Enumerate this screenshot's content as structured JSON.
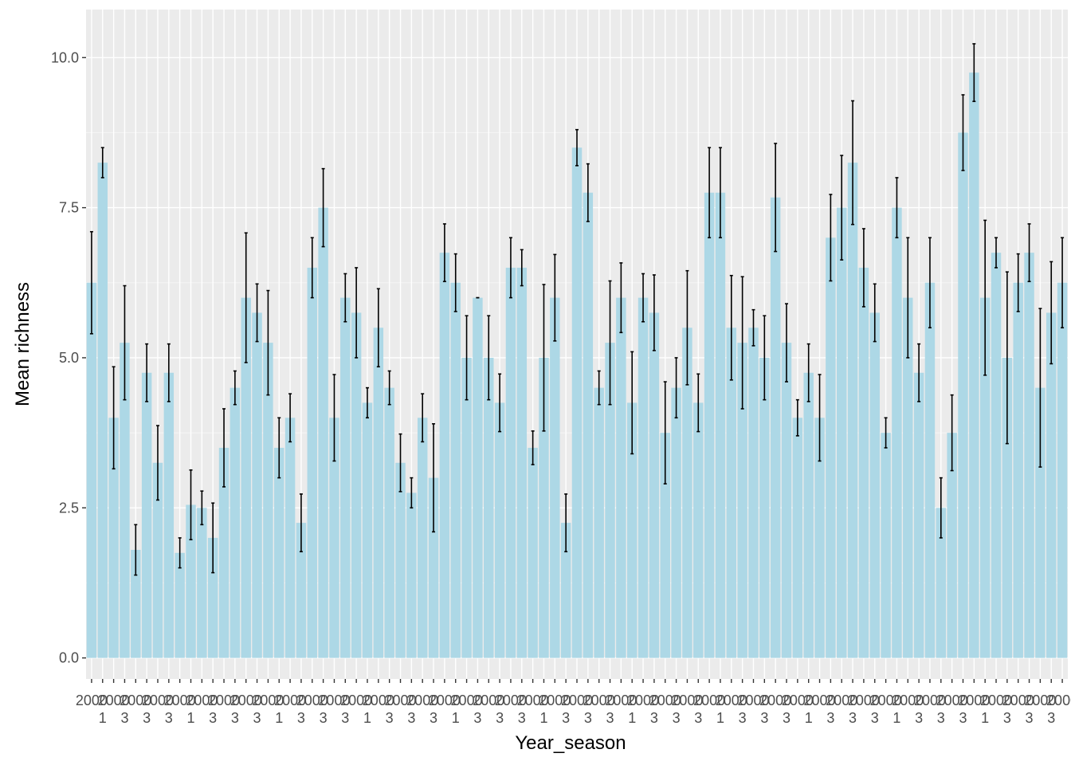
{
  "chart_data": {
    "type": "bar",
    "xlabel": "Year_season",
    "ylabel": "Mean richness",
    "ylim": [
      -0.35,
      10.8
    ],
    "y_ticks": [
      0.0,
      2.5,
      5.0,
      7.5,
      10.0
    ],
    "y_tick_labels": [
      "0.0",
      "2.5",
      "5.0",
      "7.5",
      "10.0"
    ],
    "grid": true,
    "legend": "none",
    "colors": {
      "bar": "#add8e6",
      "error_bar": "#000000",
      "panel": "#ebebeb",
      "grid_major": "#ffffff",
      "grid_minor": "#f5f5f5",
      "tick_text": "#4d4d4d"
    },
    "x_tick_labels_note": "x tick labels overlap and are illegible",
    "x_tick_labels": [
      "2000",
      "1",
      "1",
      "1",
      "3",
      "3",
      "3",
      "3",
      "3"
    ],
    "bars": [
      {
        "mean": 6.25,
        "err": 0.85
      },
      {
        "mean": 8.25,
        "err": 0.25
      },
      {
        "mean": 4.0,
        "err": 0.85
      },
      {
        "mean": 5.25,
        "err": 0.95
      },
      {
        "mean": 1.8,
        "err": 0.42
      },
      {
        "mean": 4.75,
        "err": 0.48
      },
      {
        "mean": 3.25,
        "err": 0.62
      },
      {
        "mean": 4.75,
        "err": 0.48
      },
      {
        "mean": 1.75,
        "err": 0.25
      },
      {
        "mean": 2.55,
        "err": 0.58
      },
      {
        "mean": 2.5,
        "err": 0.28
      },
      {
        "mean": 2.0,
        "err": 0.58
      },
      {
        "mean": 3.5,
        "err": 0.65
      },
      {
        "mean": 4.5,
        "err": 0.28
      },
      {
        "mean": 6.0,
        "err": 1.08
      },
      {
        "mean": 5.75,
        "err": 0.48
      },
      {
        "mean": 5.25,
        "err": 0.87
      },
      {
        "mean": 3.5,
        "err": 0.5
      },
      {
        "mean": 4.0,
        "err": 0.4
      },
      {
        "mean": 2.25,
        "err": 0.48
      },
      {
        "mean": 6.5,
        "err": 0.5
      },
      {
        "mean": 7.5,
        "err": 0.65
      },
      {
        "mean": 4.0,
        "err": 0.72
      },
      {
        "mean": 6.0,
        "err": 0.4
      },
      {
        "mean": 5.75,
        "err": 0.75
      },
      {
        "mean": 4.25,
        "err": 0.25
      },
      {
        "mean": 5.5,
        "err": 0.65
      },
      {
        "mean": 4.5,
        "err": 0.28
      },
      {
        "mean": 3.25,
        "err": 0.48
      },
      {
        "mean": 2.75,
        "err": 0.25
      },
      {
        "mean": 4.0,
        "err": 0.4
      },
      {
        "mean": 3.0,
        "err": 0.9
      },
      {
        "mean": 6.75,
        "err": 0.48
      },
      {
        "mean": 6.25,
        "err": 0.48
      },
      {
        "mean": 5.0,
        "err": 0.7
      },
      {
        "mean": 6.0,
        "err": 0.0
      },
      {
        "mean": 5.0,
        "err": 0.7
      },
      {
        "mean": 4.25,
        "err": 0.48
      },
      {
        "mean": 6.5,
        "err": 0.5
      },
      {
        "mean": 6.5,
        "err": 0.3
      },
      {
        "mean": 3.5,
        "err": 0.28
      },
      {
        "mean": 5.0,
        "err": 1.22
      },
      {
        "mean": 6.0,
        "err": 0.72
      },
      {
        "mean": 2.25,
        "err": 0.48
      },
      {
        "mean": 8.5,
        "err": 0.3
      },
      {
        "mean": 7.75,
        "err": 0.48
      },
      {
        "mean": 4.5,
        "err": 0.28
      },
      {
        "mean": 5.25,
        "err": 1.03
      },
      {
        "mean": 6.0,
        "err": 0.58
      },
      {
        "mean": 4.25,
        "err": 0.85
      },
      {
        "mean": 6.0,
        "err": 0.4
      },
      {
        "mean": 5.75,
        "err": 0.63
      },
      {
        "mean": 3.75,
        "err": 0.85
      },
      {
        "mean": 4.5,
        "err": 0.5
      },
      {
        "mean": 5.5,
        "err": 0.95
      },
      {
        "mean": 4.25,
        "err": 0.48
      },
      {
        "mean": 7.75,
        "err": 0.75
      },
      {
        "mean": 7.75,
        "err": 0.75
      },
      {
        "mean": 5.5,
        "err": 0.87
      },
      {
        "mean": 5.25,
        "err": 1.1
      },
      {
        "mean": 5.5,
        "err": 0.3
      },
      {
        "mean": 5.0,
        "err": 0.7
      },
      {
        "mean": 7.67,
        "err": 0.9
      },
      {
        "mean": 5.25,
        "err": 0.65
      },
      {
        "mean": 4.0,
        "err": 0.3
      },
      {
        "mean": 4.75,
        "err": 0.48
      },
      {
        "mean": 4.0,
        "err": 0.72
      },
      {
        "mean": 7.0,
        "err": 0.72
      },
      {
        "mean": 7.5,
        "err": 0.87
      },
      {
        "mean": 8.25,
        "err": 1.03
      },
      {
        "mean": 6.5,
        "err": 0.65
      },
      {
        "mean": 5.75,
        "err": 0.48
      },
      {
        "mean": 3.75,
        "err": 0.25
      },
      {
        "mean": 7.5,
        "err": 0.5
      },
      {
        "mean": 6.0,
        "err": 1.0
      },
      {
        "mean": 4.75,
        "err": 0.48
      },
      {
        "mean": 6.25,
        "err": 0.75
      },
      {
        "mean": 2.5,
        "err": 0.5
      },
      {
        "mean": 3.75,
        "err": 0.63
      },
      {
        "mean": 8.75,
        "err": 0.63
      },
      {
        "mean": 9.75,
        "err": 0.48
      },
      {
        "mean": 6.0,
        "err": 1.29
      },
      {
        "mean": 6.75,
        "err": 0.25
      },
      {
        "mean": 5.0,
        "err": 1.43
      },
      {
        "mean": 6.25,
        "err": 0.48
      },
      {
        "mean": 6.75,
        "err": 0.48
      },
      {
        "mean": 4.5,
        "err": 1.32
      },
      {
        "mean": 5.75,
        "err": 0.85
      },
      {
        "mean": 6.25,
        "err": 0.75
      }
    ]
  }
}
